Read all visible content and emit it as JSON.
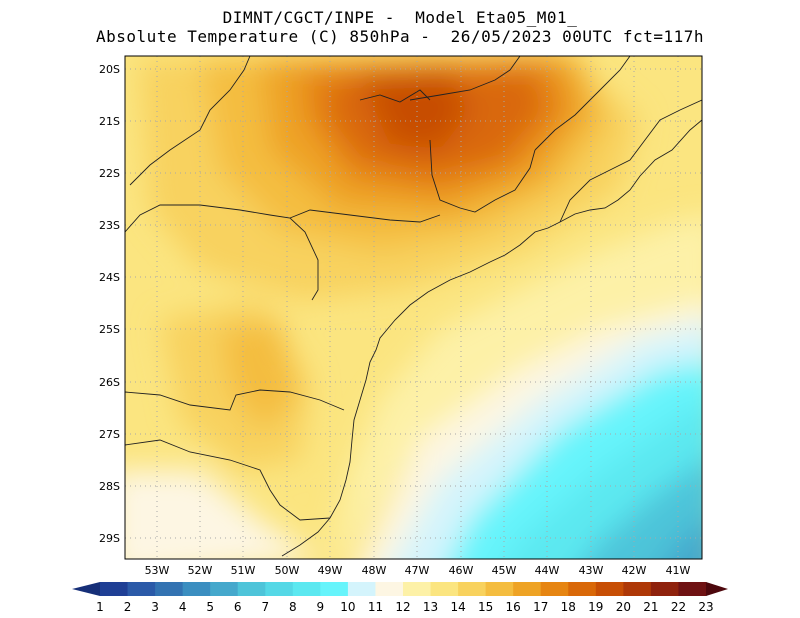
{
  "title": {
    "line1": "DIMNT/CGCT/INPE -  Model Eta05_M01_",
    "line2": "Absolute Temperature (C) 850hPa -  26/05/2023 00UTC fct=117h"
  },
  "map": {
    "lon_labels": [
      "53W",
      "52W",
      "51W",
      "50W",
      "49W",
      "48W",
      "47W",
      "46W",
      "45W",
      "44W",
      "43W",
      "42W",
      "41W"
    ],
    "lat_labels": [
      "20S",
      "21S",
      "22S",
      "23S",
      "24S",
      "25S",
      "26S",
      "27S",
      "28S",
      "29S"
    ]
  },
  "colorbar": {
    "labels": [
      "1",
      "2",
      "3",
      "4",
      "5",
      "6",
      "7",
      "8",
      "9",
      "10",
      "11",
      "12",
      "13",
      "14",
      "15",
      "16",
      "17",
      "18",
      "19",
      "20",
      "21",
      "22",
      "23"
    ],
    "colors": [
      "#1f3f95",
      "#2b5aa8",
      "#3373b2",
      "#3b8ec0",
      "#45a8cc",
      "#4ec4d9",
      "#55d8e6",
      "#5ce8f0",
      "#66f4fb",
      "#d4f4fc",
      "#fdf6e3",
      "#fdf1a7",
      "#fbe580",
      "#f8d25e",
      "#f4bd40",
      "#eea325",
      "#e68512",
      "#d96808",
      "#c74e05",
      "#ae3807",
      "#8f220d",
      "#6f1213"
    ],
    "under_color": "#162f78",
    "over_color": "#4d080d"
  }
}
